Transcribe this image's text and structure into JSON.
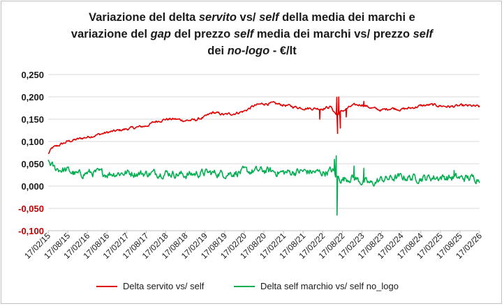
{
  "chart_data": {
    "type": "line",
    "title_parts": {
      "l1a": "Variazione del delta ",
      "l1b": "servito",
      "l1c": " vs/ ",
      "l1d": "self",
      "l1e": " della media dei marchi e",
      "l2a": "variazione del ",
      "l2b": "gap",
      "l2c": " del prezzo ",
      "l2d": "self",
      "l2e": " media dei marchi vs/ prezzo ",
      "l2f": "self",
      "l3a": "dei ",
      "l3b": "no-logo",
      "l3c": " - €/lt"
    },
    "ylim": [
      -0.1,
      0.25
    ],
    "yticks": [
      {
        "value": 0.25,
        "label": "0,250",
        "color": "#1a1a1a"
      },
      {
        "value": 0.2,
        "label": "0,200",
        "color": "#1a1a1a"
      },
      {
        "value": 0.15,
        "label": "0,150",
        "color": "#1a1a1a"
      },
      {
        "value": 0.1,
        "label": "0,100",
        "color": "#1a1a1a"
      },
      {
        "value": 0.05,
        "label": "0,050",
        "color": "#1a1a1a"
      },
      {
        "value": 0.0,
        "label": "0,000",
        "color": "#1a1a1a"
      },
      {
        "value": -0.05,
        "label": "-0,050",
        "color": "#c00000"
      },
      {
        "value": -0.1,
        "label": "-0,100",
        "color": "#c00000"
      }
    ],
    "xticks": [
      "17/02/15",
      "17/08/15",
      "17/02/16",
      "17/08/16",
      "17/02/17",
      "17/08/17",
      "17/02/18",
      "17/08/18",
      "17/02/19",
      "17/08/19",
      "17/02/20",
      "17/08/20",
      "17/02/21",
      "17/08/21",
      "17/02/22",
      "17/08/22",
      "17/02/23",
      "17/08/23",
      "17/02/24",
      "17/08/24",
      "17/02/25",
      "17/08/25",
      "17/02/26"
    ],
    "series": [
      {
        "name": "Delta servito vs/ self",
        "color": "#e00000",
        "anchors": [
          [
            0,
            0.072
          ],
          [
            0.2,
            0.085
          ],
          [
            1,
            0.1
          ],
          [
            2,
            0.11
          ],
          [
            3,
            0.12
          ],
          [
            4,
            0.128
          ],
          [
            5,
            0.135
          ],
          [
            5.5,
            0.145
          ],
          [
            6,
            0.15
          ],
          [
            6.5,
            0.15
          ],
          [
            7,
            0.147
          ],
          [
            7.5,
            0.148
          ],
          [
            8,
            0.155
          ],
          [
            8.4,
            0.165
          ],
          [
            9,
            0.16
          ],
          [
            9.5,
            0.163
          ],
          [
            10,
            0.168
          ],
          [
            10.5,
            0.18
          ],
          [
            11,
            0.185
          ],
          [
            11.5,
            0.185
          ],
          [
            12,
            0.182
          ],
          [
            12.5,
            0.178
          ],
          [
            13,
            0.175
          ],
          [
            13.5,
            0.174
          ],
          [
            14,
            0.174
          ],
          [
            14.4,
            0.178
          ],
          [
            14.7,
            0.16
          ],
          [
            15,
            0.168
          ],
          [
            15.5,
            0.18
          ],
          [
            16,
            0.183
          ],
          [
            16.5,
            0.175
          ],
          [
            17,
            0.17
          ],
          [
            17.5,
            0.175
          ],
          [
            18,
            0.172
          ],
          [
            18.5,
            0.175
          ],
          [
            19,
            0.18
          ],
          [
            19.5,
            0.182
          ],
          [
            20,
            0.18
          ],
          [
            20.5,
            0.178
          ],
          [
            21,
            0.18
          ],
          [
            21.5,
            0.18
          ],
          [
            22,
            0.178
          ]
        ],
        "noise": 0.0025,
        "spikes": [
          [
            14.72,
            0.199
          ],
          [
            14.76,
            0.118
          ],
          [
            14.82,
            0.2
          ],
          [
            14.9,
            0.13
          ],
          [
            13.85,
            0.15
          ],
          [
            15.2,
            0.155
          ],
          [
            16.1,
            0.19
          ]
        ]
      },
      {
        "name": "Delta self marchio vs/ self no_logo",
        "color": "#00b050",
        "anchors": [
          [
            0,
            0.057
          ],
          [
            0.3,
            0.04
          ],
          [
            1,
            0.035
          ],
          [
            1.5,
            0.025
          ],
          [
            2,
            0.03
          ],
          [
            3,
            0.028
          ],
          [
            4,
            0.03
          ],
          [
            5,
            0.028
          ],
          [
            6,
            0.03
          ],
          [
            7,
            0.025
          ],
          [
            8,
            0.03
          ],
          [
            9,
            0.028
          ],
          [
            10,
            0.032
          ],
          [
            11,
            0.035
          ],
          [
            12,
            0.03
          ],
          [
            13,
            0.033
          ],
          [
            14,
            0.03
          ],
          [
            14.5,
            0.035
          ],
          [
            14.7,
            0.02
          ],
          [
            15,
            0.015
          ],
          [
            15.5,
            0.02
          ],
          [
            16,
            0.01
          ],
          [
            16.5,
            0.005
          ],
          [
            17,
            0.015
          ],
          [
            18,
            0.02
          ],
          [
            19,
            0.018
          ],
          [
            20,
            0.02
          ],
          [
            21,
            0.018
          ],
          [
            22,
            0.018
          ]
        ],
        "noise": 0.007,
        "spikes": [
          [
            14.73,
            -0.065
          ],
          [
            14.69,
            0.068
          ],
          [
            14.6,
            0.06
          ],
          [
            15.6,
            0.045
          ],
          [
            16.1,
            0.04
          ],
          [
            20.7,
            0.035
          ]
        ]
      }
    ],
    "legend": [
      {
        "label": "Delta servito vs/ self",
        "color": "#e00000"
      },
      {
        "label": "Delta self marchio vs/ self no_logo",
        "color": "#00b050"
      }
    ]
  }
}
